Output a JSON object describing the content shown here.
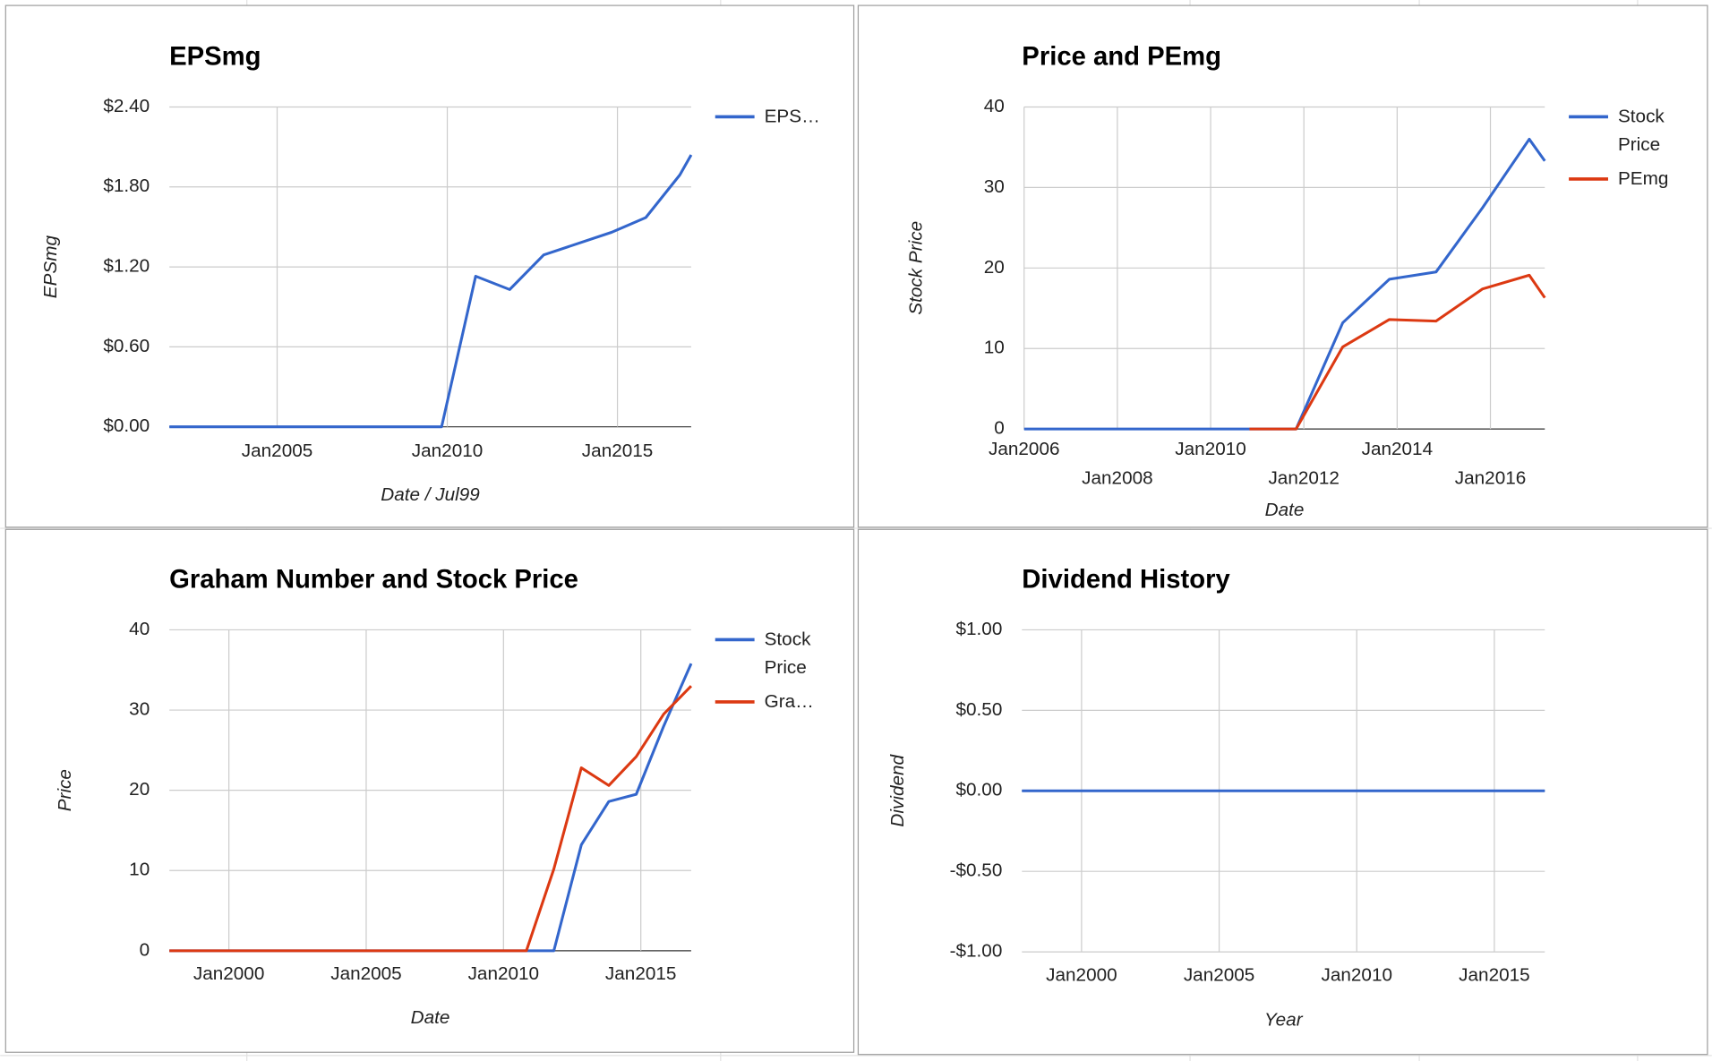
{
  "chart_data": [
    {
      "type": "line",
      "title": "EPSmg",
      "x_label": "Date / Jul99",
      "y_label": "EPSmg",
      "legend": "right",
      "xlim": [
        "2001-11",
        "2017-03"
      ],
      "xticks": [
        {
          "value": "2005-01",
          "label": "Jan2005"
        },
        {
          "value": "2010-01",
          "label": "Jan2010"
        },
        {
          "value": "2015-01",
          "label": "Jan2015"
        }
      ],
      "ylim": [
        0,
        2.4
      ],
      "yticks": [
        {
          "value": 0,
          "label": "$0.00"
        },
        {
          "value": 0.6,
          "label": "$0.60"
        },
        {
          "value": 1.2,
          "label": "$1.20"
        },
        {
          "value": 1.8,
          "label": "$1.80"
        },
        {
          "value": 2.4,
          "label": "$2.40"
        }
      ],
      "grid": true,
      "series": [
        {
          "name": "EPS…",
          "color": "#3366cc",
          "x": [
            "2001-11",
            "2009-11",
            "2010-11",
            "2011-11",
            "2012-11",
            "2014-11",
            "2015-11",
            "2016-11",
            "2017-03"
          ],
          "values": [
            0,
            0,
            1.13,
            1.03,
            1.29,
            1.46,
            1.57,
            1.89,
            2.04
          ]
        }
      ]
    },
    {
      "type": "line",
      "title": "Price and PEmg",
      "x_label": "Date",
      "y_label": "Stock Price",
      "legend": "right",
      "xlim": [
        "2006-01",
        "2017-03"
      ],
      "xticks": [
        {
          "value": "2006-01",
          "label": "Jan2006"
        },
        {
          "value": "2008-01",
          "label": "Jan2008"
        },
        {
          "value": "2010-01",
          "label": "Jan2010"
        },
        {
          "value": "2012-01",
          "label": "Jan2012"
        },
        {
          "value": "2014-01",
          "label": "Jan2014"
        },
        {
          "value": "2016-01",
          "label": "Jan2016"
        }
      ],
      "ylim": [
        0,
        40
      ],
      "yticks": [
        0,
        10,
        20,
        30,
        40
      ],
      "grid": true,
      "series": [
        {
          "name": "Stock Price",
          "color": "#3366cc",
          "x": [
            "2006-01",
            "2011-11",
            "2012-11",
            "2013-11",
            "2014-11",
            "2015-11",
            "2016-11",
            "2017-03"
          ],
          "values": [
            0,
            0,
            13.2,
            18.6,
            19.5,
            27.5,
            36,
            33.3
          ]
        },
        {
          "name": "PEmg",
          "color": "#dc3912",
          "x": [
            "2010-11",
            "2011-11",
            "2012-11",
            "2013-11",
            "2014-11",
            "2015-11",
            "2016-11",
            "2017-03"
          ],
          "values": [
            0,
            0,
            10.2,
            13.6,
            13.4,
            17.4,
            19.1,
            16.3
          ]
        }
      ]
    },
    {
      "type": "line",
      "title": "Graham Number and Stock Price",
      "x_label": "Date",
      "y_label": "Price",
      "legend": "right",
      "xlim": [
        "1997-11",
        "2016-11"
      ],
      "xticks": [
        {
          "value": "2000-01",
          "label": "Jan2000"
        },
        {
          "value": "2005-01",
          "label": "Jan2005"
        },
        {
          "value": "2010-01",
          "label": "Jan2010"
        },
        {
          "value": "2015-01",
          "label": "Jan2015"
        }
      ],
      "ylim": [
        0,
        40
      ],
      "yticks": [
        0,
        10,
        20,
        30,
        40
      ],
      "grid": true,
      "series": [
        {
          "name": "Stock Price",
          "color": "#3366cc",
          "x": [
            "1997-11",
            "2011-11",
            "2012-11",
            "2013-11",
            "2014-11",
            "2015-11",
            "2016-11"
          ],
          "values": [
            0,
            0,
            13.2,
            18.6,
            19.5,
            28,
            35.8
          ]
        },
        {
          "name": "Gra…",
          "color": "#dc3912",
          "x": [
            "1997-11",
            "2010-11",
            "2011-11",
            "2012-11",
            "2013-11",
            "2014-11",
            "2015-11",
            "2016-11"
          ],
          "values": [
            0,
            0,
            10.2,
            22.8,
            20.6,
            24.2,
            29.5,
            33
          ]
        }
      ]
    },
    {
      "type": "line",
      "title": "Dividend History",
      "x_label": "Year",
      "y_label": "Dividend",
      "xlim": [
        "1997-11",
        "2016-11"
      ],
      "xticks": [
        {
          "value": "2000-01",
          "label": "Jan2000"
        },
        {
          "value": "2005-01",
          "label": "Jan2005"
        },
        {
          "value": "2010-01",
          "label": "Jan2010"
        },
        {
          "value": "2015-01",
          "label": "Jan2015"
        }
      ],
      "ylim": [
        -1,
        1
      ],
      "yticks": [
        {
          "value": -1,
          "label": "-$1.00"
        },
        {
          "value": -0.5,
          "label": "-$0.50"
        },
        {
          "value": 0,
          "label": "$0.00"
        },
        {
          "value": 0.5,
          "label": "$0.50"
        },
        {
          "value": 1,
          "label": "$1.00"
        }
      ],
      "grid": true,
      "series": [
        {
          "color": "#3366cc",
          "x": [
            "1997-11",
            "2016-11"
          ],
          "values": [
            0,
            0
          ]
        }
      ]
    }
  ]
}
